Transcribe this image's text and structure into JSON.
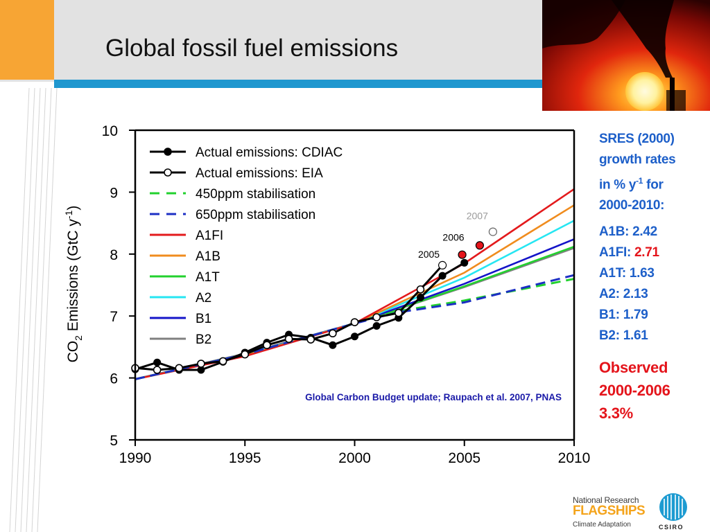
{
  "slide": {
    "title": "Global fossil fuel emissions"
  },
  "side_panel": {
    "heading_lines": [
      "SRES (2000)",
      "growth rates",
      "in % y",
      "-1",
      " for",
      "2000-2010:"
    ],
    "rates": [
      {
        "label": "A1B:",
        "value": "2.42",
        "highlight": false
      },
      {
        "label": "A1FI:",
        "value": "2.71",
        "highlight": true
      },
      {
        "label": "A1T:",
        "value": "1.63",
        "highlight": false
      },
      {
        "label": "A2:",
        "value": "2.13",
        "highlight": false
      },
      {
        "label": "B1:",
        "value": "1.79",
        "highlight": false
      },
      {
        "label": "B2:",
        "value": "1.61",
        "highlight": false
      }
    ],
    "observed_lines": [
      "Observed",
      "2000-2006",
      "3.3%"
    ]
  },
  "logos": {
    "line1": "National Research",
    "line2": "FLAGSHIPS",
    "line3": "Climate Adaptation",
    "csiro": "CSIRO"
  },
  "colors": {
    "header_accent": "#f7a534",
    "header_rule": "#1f97cf",
    "side_text": "#1d5fc9",
    "highlight_red": "#e4141b",
    "citation": "#1a1aa8"
  },
  "chart_data": {
    "type": "line",
    "ylabel_parts": [
      "CO",
      "2",
      " Emissions (GtC y",
      "-1",
      ")"
    ],
    "xlim": [
      1990,
      2010
    ],
    "ylim": [
      5,
      10
    ],
    "xticks": [
      1990,
      1995,
      2000,
      2005,
      2010
    ],
    "yticks": [
      5,
      6,
      7,
      8,
      9,
      10
    ],
    "grid": false,
    "legend_position": "top-left",
    "citation": "Global Carbon Budget update; Raupach et al. 2007, PNAS",
    "series": [
      {
        "name": "Actual emissions: CDIAC",
        "style": "line-marker-filled",
        "color": "#000000",
        "x": [
          1990,
          1991,
          1992,
          1993,
          1994,
          1995,
          1996,
          1997,
          1998,
          1999,
          2000,
          2001,
          2002,
          2003,
          2004,
          2005
        ],
        "y": [
          6.14,
          6.25,
          6.13,
          6.13,
          6.26,
          6.41,
          6.57,
          6.7,
          6.65,
          6.53,
          6.67,
          6.84,
          6.97,
          7.3,
          7.65,
          7.86
        ]
      },
      {
        "name": "Actual emissions: EIA",
        "style": "line-marker-open",
        "color": "#000000",
        "x": [
          1990,
          1991,
          1992,
          1993,
          1994,
          1995,
          1996,
          1997,
          1998,
          1999,
          2000,
          2001,
          2002,
          2003,
          2004
        ],
        "y": [
          6.16,
          6.13,
          6.16,
          6.23,
          6.27,
          6.38,
          6.53,
          6.63,
          6.62,
          6.72,
          6.9,
          6.98,
          7.05,
          7.43,
          7.82
        ]
      },
      {
        "name": "450ppm stabilisation",
        "style": "dashed",
        "color": "#22d12e",
        "x": [
          1990,
          1995,
          2000,
          2002,
          2005,
          2010
        ],
        "y": [
          5.98,
          6.38,
          6.88,
          7.08,
          7.25,
          7.6
        ]
      },
      {
        "name": "650ppm stabilisation",
        "style": "dashed",
        "color": "#1c2fc4",
        "x": [
          1990,
          1995,
          2000,
          2002,
          2005,
          2010
        ],
        "y": [
          5.98,
          6.38,
          6.88,
          7.06,
          7.22,
          7.66
        ]
      },
      {
        "name": "A1FI",
        "style": "solid",
        "color": "#e31a1c",
        "x": [
          1990,
          1995,
          2000,
          2005,
          2010
        ],
        "y": [
          5.98,
          6.35,
          6.88,
          7.85,
          9.05
        ]
      },
      {
        "name": "A1B",
        "style": "solid",
        "color": "#f08c1e",
        "x": [
          1990,
          1995,
          2000,
          2005,
          2010
        ],
        "y": [
          5.98,
          6.36,
          6.88,
          7.7,
          8.79
        ]
      },
      {
        "name": "A1T",
        "style": "solid",
        "color": "#22d12e",
        "x": [
          1990,
          1995,
          2000,
          2005,
          2010
        ],
        "y": [
          5.98,
          6.38,
          6.88,
          7.48,
          8.12
        ]
      },
      {
        "name": "A2",
        "style": "solid",
        "color": "#26e6f2",
        "x": [
          1990,
          1995,
          2000,
          2005,
          2010
        ],
        "y": [
          5.98,
          6.37,
          6.88,
          7.62,
          8.54
        ]
      },
      {
        "name": "B1",
        "style": "solid",
        "color": "#1414c8",
        "x": [
          1990,
          1995,
          2000,
          2005,
          2010
        ],
        "y": [
          5.98,
          6.38,
          6.88,
          7.52,
          8.24
        ]
      },
      {
        "name": "B2",
        "style": "solid",
        "color": "#808080",
        "x": [
          1990,
          1995,
          2000,
          2005,
          2010
        ],
        "y": [
          5.98,
          6.39,
          6.88,
          7.47,
          8.1
        ]
      }
    ],
    "highlighted_points": [
      {
        "label": "2005",
        "x": 2004,
        "y": 7.82,
        "marker": "open-black",
        "label_color": "#000000"
      },
      {
        "label": "2006",
        "x": 2004.9,
        "y": 7.99,
        "marker": "filled-red",
        "label_color": "#000000"
      },
      {
        "label": "2007",
        "x": 2005.7,
        "y": 8.14,
        "marker": "filled-red",
        "label_color": "#9a9a9a"
      },
      {
        "label": "2007",
        "x": 2006.3,
        "y": 8.36,
        "marker": "open-gray",
        "label_color": "#9a9a9a"
      }
    ]
  }
}
